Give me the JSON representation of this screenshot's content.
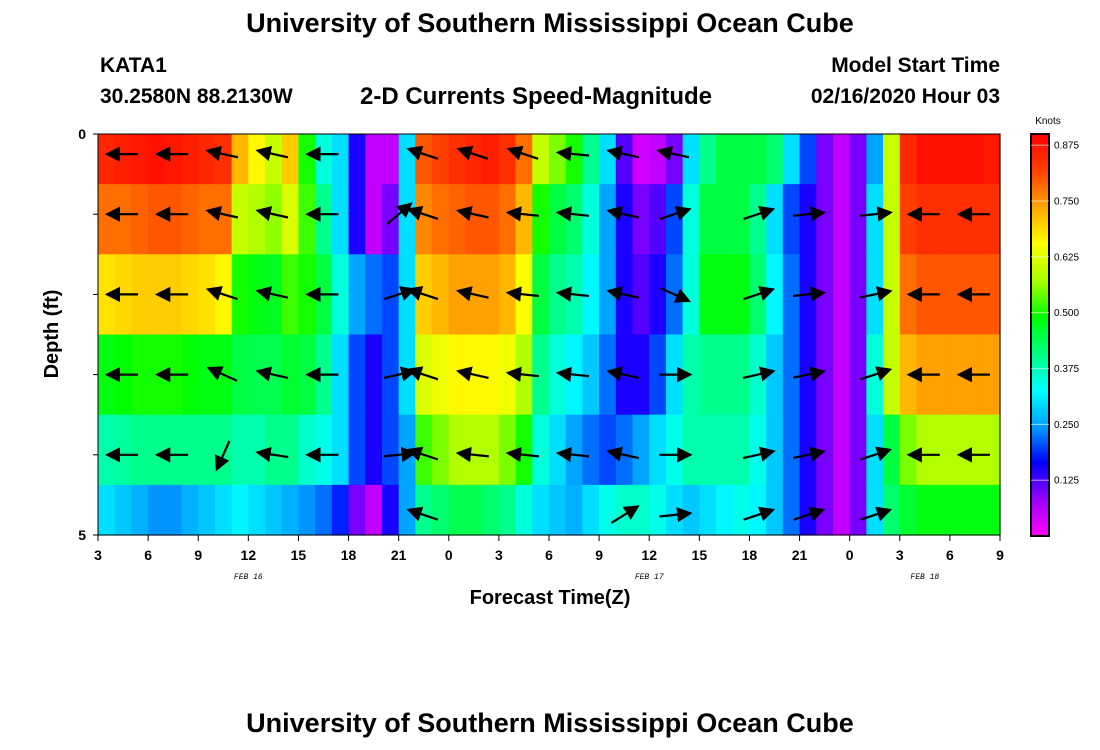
{
  "header": {
    "title": "University of Southern Mississippi Ocean Cube",
    "station": "KATA1",
    "coordinates": "30.2580N 88.2130W",
    "subtitle": "2-D Currents Speed-Magnitude",
    "model_start_label": "Model Start Time",
    "model_start_value": "02/16/2020 Hour 03"
  },
  "footer": {
    "title": "University of Southern Mississippi Ocean Cube"
  },
  "chart_data": {
    "type": "heatmap",
    "title": "2-D Currents Speed-Magnitude",
    "xlabel": "Forecast Time(Z)",
    "ylabel": "Depth (ft)",
    "x_ticks": [
      "3",
      "6",
      "9",
      "12",
      "15",
      "18",
      "21",
      "0",
      "3",
      "6",
      "9",
      "12",
      "15",
      "18",
      "21",
      "0",
      "3",
      "6",
      "9"
    ],
    "x_range_hours": [
      0,
      54
    ],
    "x_step_hours": 1,
    "date_labels": [
      {
        "text": "FEB 16",
        "hour": 9
      },
      {
        "text": "FEB 17",
        "hour": 33
      },
      {
        "text": "FEB 18",
        "hour": 49.5
      }
    ],
    "y_ticks": [
      "0",
      "5"
    ],
    "y_range_ft": [
      0,
      5
    ],
    "depth_rows": [
      0.25,
      1,
      2,
      3,
      4,
      4.75
    ],
    "colorbar": {
      "unit": "Knots",
      "ticks": [
        "0.875",
        "0.750",
        "0.625",
        "0.500",
        "0.375",
        "0.250",
        "0.125"
      ],
      "range": [
        0,
        0.9
      ],
      "colors": [
        "#ff00ff",
        "#9b00ff",
        "#0000ff",
        "#00a0ff",
        "#00ffff",
        "#00ff7f",
        "#00ff00",
        "#aaff00",
        "#ffff00",
        "#ffa500",
        "#ff4000",
        "#ff0000"
      ]
    },
    "speed_knots": [
      [
        0.85,
        0.86,
        0.87,
        0.88,
        0.87,
        0.86,
        0.85,
        0.84,
        0.72,
        0.66,
        0.6,
        0.7,
        0.5,
        0.35,
        0.3,
        0.15,
        0.05,
        0.05,
        0.3,
        0.8,
        0.82,
        0.84,
        0.85,
        0.86,
        0.84,
        0.78,
        0.6,
        0.55,
        0.5,
        0.4,
        0.3,
        0.12,
        0.04,
        0.05,
        0.1,
        0.3,
        0.4,
        0.45,
        0.45,
        0.45,
        0.42,
        0.3,
        0.2,
        0.1,
        0.05,
        0.1,
        0.25,
        0.6,
        0.85,
        0.88,
        0.88,
        0.88,
        0.88,
        0.87
      ],
      [
        0.78,
        0.78,
        0.79,
        0.8,
        0.8,
        0.79,
        0.78,
        0.78,
        0.6,
        0.58,
        0.56,
        0.62,
        0.52,
        0.4,
        0.3,
        0.15,
        0.05,
        0.1,
        0.3,
        0.76,
        0.78,
        0.79,
        0.8,
        0.8,
        0.78,
        0.72,
        0.5,
        0.45,
        0.42,
        0.35,
        0.25,
        0.15,
        0.1,
        0.12,
        0.2,
        0.35,
        0.45,
        0.45,
        0.45,
        0.4,
        0.3,
        0.2,
        0.15,
        0.1,
        0.05,
        0.1,
        0.3,
        0.6,
        0.82,
        0.84,
        0.84,
        0.84,
        0.84,
        0.84
      ],
      [
        0.68,
        0.69,
        0.7,
        0.7,
        0.7,
        0.69,
        0.68,
        0.66,
        0.5,
        0.48,
        0.47,
        0.52,
        0.5,
        0.45,
        0.35,
        0.25,
        0.22,
        0.2,
        0.3,
        0.7,
        0.72,
        0.74,
        0.74,
        0.74,
        0.72,
        0.65,
        0.45,
        0.4,
        0.38,
        0.32,
        0.25,
        0.15,
        0.12,
        0.15,
        0.22,
        0.35,
        0.48,
        0.48,
        0.48,
        0.42,
        0.32,
        0.22,
        0.15,
        0.1,
        0.05,
        0.1,
        0.3,
        0.6,
        0.78,
        0.8,
        0.8,
        0.8,
        0.8,
        0.8
      ],
      [
        0.48,
        0.49,
        0.5,
        0.5,
        0.5,
        0.49,
        0.48,
        0.48,
        0.45,
        0.44,
        0.44,
        0.46,
        0.45,
        0.4,
        0.3,
        0.2,
        0.15,
        0.2,
        0.3,
        0.62,
        0.64,
        0.66,
        0.66,
        0.66,
        0.64,
        0.58,
        0.4,
        0.35,
        0.32,
        0.28,
        0.22,
        0.15,
        0.15,
        0.2,
        0.3,
        0.38,
        0.4,
        0.4,
        0.4,
        0.36,
        0.28,
        0.22,
        0.15,
        0.1,
        0.05,
        0.1,
        0.35,
        0.6,
        0.72,
        0.74,
        0.74,
        0.74,
        0.74,
        0.74
      ],
      [
        0.38,
        0.39,
        0.4,
        0.4,
        0.4,
        0.4,
        0.4,
        0.4,
        0.38,
        0.38,
        0.4,
        0.4,
        0.36,
        0.34,
        0.3,
        0.2,
        0.15,
        0.2,
        0.25,
        0.52,
        0.55,
        0.58,
        0.58,
        0.58,
        0.55,
        0.5,
        0.35,
        0.3,
        0.25,
        0.22,
        0.2,
        0.22,
        0.25,
        0.3,
        0.34,
        0.38,
        0.38,
        0.38,
        0.38,
        0.34,
        0.28,
        0.22,
        0.15,
        0.1,
        0.05,
        0.1,
        0.3,
        0.45,
        0.55,
        0.58,
        0.58,
        0.58,
        0.58,
        0.58
      ],
      [
        0.3,
        0.28,
        0.26,
        0.24,
        0.24,
        0.26,
        0.28,
        0.3,
        0.32,
        0.3,
        0.28,
        0.26,
        0.24,
        0.22,
        0.18,
        0.1,
        0.05,
        0.15,
        0.25,
        0.4,
        0.42,
        0.44,
        0.44,
        0.42,
        0.4,
        0.35,
        0.3,
        0.28,
        0.26,
        0.3,
        0.34,
        0.36,
        0.36,
        0.34,
        0.3,
        0.28,
        0.3,
        0.32,
        0.34,
        0.32,
        0.28,
        0.22,
        0.15,
        0.1,
        0.05,
        0.1,
        0.3,
        0.42,
        0.46,
        0.48,
        0.48,
        0.48,
        0.48,
        0.48
      ]
    ],
    "vectors": [
      {
        "hour": 1.5,
        "depth": 0.25,
        "u": -1,
        "v": 0
      },
      {
        "hour": 4.5,
        "depth": 0.25,
        "u": -1,
        "v": 0
      },
      {
        "hour": 7.5,
        "depth": 0.25,
        "u": -0.9,
        "v": 0.2
      },
      {
        "hour": 10.5,
        "depth": 0.25,
        "u": -0.9,
        "v": 0.2
      },
      {
        "hour": 13.5,
        "depth": 0.25,
        "u": -1,
        "v": 0
      },
      {
        "hour": 19.5,
        "depth": 0.25,
        "u": -0.9,
        "v": 0.3
      },
      {
        "hour": 22.5,
        "depth": 0.25,
        "u": -0.9,
        "v": 0.3
      },
      {
        "hour": 25.5,
        "depth": 0.25,
        "u": -0.9,
        "v": 0.3
      },
      {
        "hour": 28.5,
        "depth": 0.25,
        "u": -1,
        "v": 0.1
      },
      {
        "hour": 31.5,
        "depth": 0.25,
        "u": -0.9,
        "v": 0.2
      },
      {
        "hour": 34.5,
        "depth": 0.25,
        "u": -0.9,
        "v": 0.2
      },
      {
        "hour": 1.5,
        "depth": 1,
        "u": -1,
        "v": 0
      },
      {
        "hour": 4.5,
        "depth": 1,
        "u": -1,
        "v": 0
      },
      {
        "hour": 7.5,
        "depth": 1,
        "u": -0.9,
        "v": 0.2
      },
      {
        "hour": 10.5,
        "depth": 1,
        "u": -0.9,
        "v": 0.2
      },
      {
        "hour": 13.5,
        "depth": 1,
        "u": -1,
        "v": 0
      },
      {
        "hour": 18,
        "depth": 1,
        "u": 0.7,
        "v": 0.6
      },
      {
        "hour": 19.5,
        "depth": 1,
        "u": -0.9,
        "v": 0.3
      },
      {
        "hour": 22.5,
        "depth": 1,
        "u": -0.9,
        "v": 0.2
      },
      {
        "hour": 25.5,
        "depth": 1,
        "u": -0.95,
        "v": 0.1
      },
      {
        "hour": 28.5,
        "depth": 1,
        "u": -0.95,
        "v": 0.1
      },
      {
        "hour": 31.5,
        "depth": 1,
        "u": -0.9,
        "v": 0.2
      },
      {
        "hour": 34.5,
        "depth": 1,
        "u": 0.9,
        "v": 0.3
      },
      {
        "hour": 39.5,
        "depth": 1,
        "u": 0.9,
        "v": 0.3
      },
      {
        "hour": 42.5,
        "depth": 1,
        "u": 0.95,
        "v": 0.1
      },
      {
        "hour": 46.5,
        "depth": 1,
        "u": 0.95,
        "v": 0.1
      },
      {
        "hour": 49.5,
        "depth": 1,
        "u": -1,
        "v": 0
      },
      {
        "hour": 52.5,
        "depth": 1,
        "u": -1,
        "v": 0
      },
      {
        "hour": 1.5,
        "depth": 2,
        "u": -1,
        "v": 0
      },
      {
        "hour": 4.5,
        "depth": 2,
        "u": -1,
        "v": 0
      },
      {
        "hour": 7.5,
        "depth": 2,
        "u": -0.9,
        "v": 0.3
      },
      {
        "hour": 10.5,
        "depth": 2,
        "u": -0.9,
        "v": 0.2
      },
      {
        "hour": 13.5,
        "depth": 2,
        "u": -1,
        "v": 0
      },
      {
        "hour": 18,
        "depth": 2,
        "u": 0.9,
        "v": 0.3
      },
      {
        "hour": 19.5,
        "depth": 2,
        "u": -0.9,
        "v": 0.3
      },
      {
        "hour": 22.5,
        "depth": 2,
        "u": -0.9,
        "v": 0.2
      },
      {
        "hour": 25.5,
        "depth": 2,
        "u": -0.95,
        "v": 0.1
      },
      {
        "hour": 28.5,
        "depth": 2,
        "u": -0.95,
        "v": 0.1
      },
      {
        "hour": 31.5,
        "depth": 2,
        "u": -0.9,
        "v": 0.2
      },
      {
        "hour": 34.5,
        "depth": 2,
        "u": 0.9,
        "v": -0.4
      },
      {
        "hour": 39.5,
        "depth": 2,
        "u": 0.9,
        "v": 0.3
      },
      {
        "hour": 42.5,
        "depth": 2,
        "u": 0.95,
        "v": 0.1
      },
      {
        "hour": 46.5,
        "depth": 2,
        "u": 0.95,
        "v": 0.2
      },
      {
        "hour": 49.5,
        "depth": 2,
        "u": -1,
        "v": 0
      },
      {
        "hour": 52.5,
        "depth": 2,
        "u": -1,
        "v": 0
      },
      {
        "hour": 1.5,
        "depth": 3,
        "u": -1,
        "v": 0
      },
      {
        "hour": 4.5,
        "depth": 3,
        "u": -1,
        "v": 0
      },
      {
        "hour": 7.5,
        "depth": 3,
        "u": -0.9,
        "v": 0.4
      },
      {
        "hour": 10.5,
        "depth": 3,
        "u": -0.9,
        "v": 0.2
      },
      {
        "hour": 13.5,
        "depth": 3,
        "u": -1,
        "v": 0
      },
      {
        "hour": 18,
        "depth": 3,
        "u": 0.9,
        "v": 0.2
      },
      {
        "hour": 19.5,
        "depth": 3,
        "u": -0.9,
        "v": 0.3
      },
      {
        "hour": 22.5,
        "depth": 3,
        "u": -0.9,
        "v": 0.2
      },
      {
        "hour": 25.5,
        "depth": 3,
        "u": -0.95,
        "v": 0.1
      },
      {
        "hour": 28.5,
        "depth": 3,
        "u": -0.95,
        "v": 0.1
      },
      {
        "hour": 31.5,
        "depth": 3,
        "u": -0.9,
        "v": 0.2
      },
      {
        "hour": 34.5,
        "depth": 3,
        "u": 1,
        "v": 0
      },
      {
        "hour": 39.5,
        "depth": 3,
        "u": 0.9,
        "v": 0.2
      },
      {
        "hour": 42.5,
        "depth": 3,
        "u": 0.95,
        "v": 0.2
      },
      {
        "hour": 46.5,
        "depth": 3,
        "u": 0.9,
        "v": 0.3
      },
      {
        "hour": 49.5,
        "depth": 3,
        "u": -1,
        "v": 0
      },
      {
        "hour": 52.5,
        "depth": 3,
        "u": -1,
        "v": 0
      },
      {
        "hour": 1.5,
        "depth": 4,
        "u": -1,
        "v": 0
      },
      {
        "hour": 4.5,
        "depth": 4,
        "u": -1,
        "v": 0
      },
      {
        "hour": 7.5,
        "depth": 4,
        "u": -0.4,
        "v": -0.9
      },
      {
        "hour": 10.5,
        "depth": 4,
        "u": -0.95,
        "v": 0.15
      },
      {
        "hour": 13.5,
        "depth": 4,
        "u": -1,
        "v": 0
      },
      {
        "hour": 18,
        "depth": 4,
        "u": 0.95,
        "v": 0.1
      },
      {
        "hour": 19.5,
        "depth": 4,
        "u": -0.9,
        "v": 0.3
      },
      {
        "hour": 22.5,
        "depth": 4,
        "u": -0.95,
        "v": 0.1
      },
      {
        "hour": 25.5,
        "depth": 4,
        "u": -0.95,
        "v": 0.1
      },
      {
        "hour": 28.5,
        "depth": 4,
        "u": -0.95,
        "v": 0.1
      },
      {
        "hour": 31.5,
        "depth": 4,
        "u": -0.9,
        "v": 0.2
      },
      {
        "hour": 34.5,
        "depth": 4,
        "u": 1,
        "v": 0
      },
      {
        "hour": 39.5,
        "depth": 4,
        "u": 0.9,
        "v": 0.2
      },
      {
        "hour": 42.5,
        "depth": 4,
        "u": 0.95,
        "v": 0.2
      },
      {
        "hour": 46.5,
        "depth": 4,
        "u": 0.9,
        "v": 0.3
      },
      {
        "hour": 49.5,
        "depth": 4,
        "u": -1,
        "v": 0
      },
      {
        "hour": 52.5,
        "depth": 4,
        "u": -1,
        "v": 0
      },
      {
        "hour": 19.5,
        "depth": 4.75,
        "u": -0.9,
        "v": 0.3
      },
      {
        "hour": 31.5,
        "depth": 4.75,
        "u": 0.8,
        "v": 0.5
      },
      {
        "hour": 34.5,
        "depth": 4.75,
        "u": 0.95,
        "v": 0.1
      },
      {
        "hour": 39.5,
        "depth": 4.75,
        "u": 0.9,
        "v": 0.3
      },
      {
        "hour": 42.5,
        "depth": 4.75,
        "u": 0.9,
        "v": 0.3
      },
      {
        "hour": 46.5,
        "depth": 4.75,
        "u": 0.9,
        "v": 0.3
      }
    ]
  }
}
